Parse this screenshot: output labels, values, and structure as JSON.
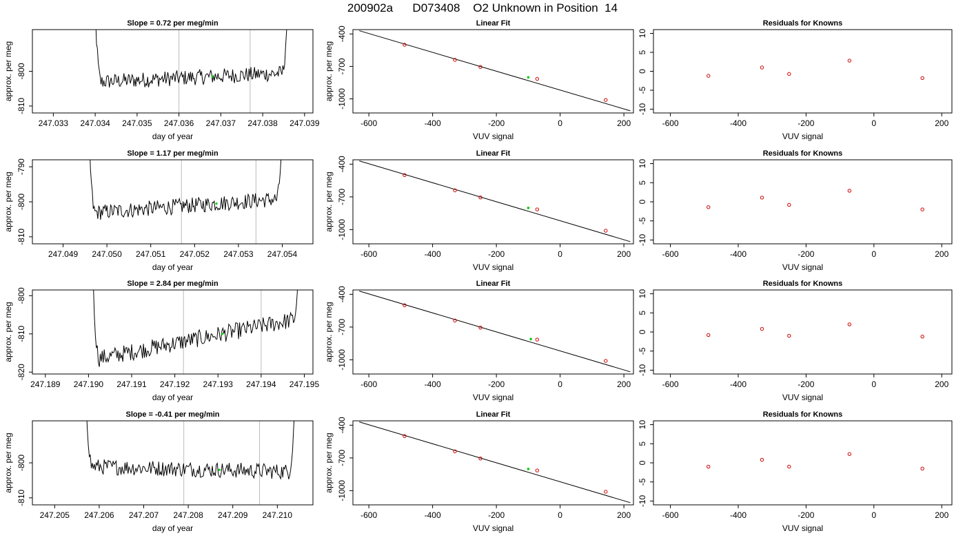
{
  "figure_title": "200902a      D073408    O2 Unknown in Position  14",
  "chart_data": [
    {
      "type": "line",
      "title": "Slope =  0.72  per meg/min",
      "xlabel": "day of year",
      "ylabel": "approx. per meg",
      "xlim": [
        247.0325,
        247.0392
      ],
      "ylim": [
        -812,
        -788
      ],
      "xticks": [
        247.033,
        247.034,
        247.035,
        247.036,
        247.037,
        247.038,
        247.039
      ],
      "xtick_labels": [
        "247.033",
        "247.034",
        "247.035",
        "247.036",
        "247.037",
        "247.038",
        "247.039"
      ],
      "yticks": [
        -800,
        -810
      ],
      "ytick_labels": [
        "-800",
        "-810"
      ],
      "vlines": [
        247.036,
        247.0377
      ],
      "marker": {
        "x": 247.0368,
        "y": -801.5
      },
      "x_start": 247.0339,
      "x_end": 247.0387
    },
    {
      "type": "line",
      "title": "Linear Fit",
      "xlabel": "VUV signal",
      "ylabel": "approx. per meg",
      "xlim": [
        -650,
        230
      ],
      "ylim": [
        -1130,
        -360
      ],
      "xticks": [
        -600,
        -400,
        -200,
        0,
        200
      ],
      "xtick_labels": [
        "-600",
        "-400",
        "-200",
        "0",
        "200"
      ],
      "yticks": [
        -400,
        -700,
        -1000
      ],
      "ytick_labels": [
        "-400",
        "-700",
        "-1000"
      ],
      "knowns": {
        "x": [
          -488,
          -330,
          -250,
          -72,
          143
        ],
        "y": [
          -500,
          -640,
          -705,
          -815,
          -1010
        ]
      },
      "unknown": {
        "x": -100,
        "y": -801
      },
      "fit_line": {
        "x": [
          -630,
          220
        ],
        "y": [
          -370,
          -1110
        ]
      }
    },
    {
      "type": "scatter",
      "title": "Residuals for Knowns",
      "xlabel": "VUV signal",
      "ylabel": "",
      "xlim": [
        -650,
        230
      ],
      "ylim": [
        -11,
        11
      ],
      "xticks": [
        -600,
        -400,
        -200,
        0,
        200
      ],
      "xtick_labels": [
        "-600",
        "-400",
        "-200",
        "0",
        "200"
      ],
      "yticks": [
        10,
        5,
        0,
        -5,
        -10
      ],
      "ytick_labels": [
        "10",
        "5",
        "0",
        "-5",
        "-10"
      ],
      "x": [
        -488,
        -330,
        -250,
        -72,
        143
      ],
      "y": [
        -1.2,
        1.0,
        -0.7,
        2.8,
        -1.8
      ]
    },
    {
      "type": "line",
      "title": "Slope =  1.17  per meg/min",
      "xlabel": "day of year",
      "ylabel": "approx. per meg",
      "xlim": [
        247.0483,
        247.0547
      ],
      "ylim": [
        -812,
        -788
      ],
      "xticks": [
        247.049,
        247.05,
        247.051,
        247.052,
        247.053,
        247.054
      ],
      "xtick_labels": [
        "247.049",
        "247.050",
        "247.051",
        "247.052",
        "247.053",
        "247.054"
      ],
      "yticks": [
        -790,
        -800,
        -810
      ],
      "ytick_labels": [
        "-790",
        "-800",
        "-810"
      ],
      "vlines": [
        247.0517,
        247.0534
      ],
      "marker": {
        "x": 247.0525,
        "y": -800.5
      },
      "x_start": 247.0495,
      "x_end": 247.0541
    },
    {
      "type": "line",
      "title": "Linear Fit",
      "xlabel": "VUV signal",
      "ylabel": "approx. per meg",
      "xlim": [
        -650,
        230
      ],
      "ylim": [
        -1130,
        -360
      ],
      "xticks": [
        -600,
        -400,
        -200,
        0,
        200
      ],
      "xtick_labels": [
        "-600",
        "-400",
        "-200",
        "0",
        "200"
      ],
      "yticks": [
        -400,
        -700,
        -1000
      ],
      "ytick_labels": [
        "-400",
        "-700",
        "-1000"
      ],
      "knowns": {
        "x": [
          -488,
          -330,
          -250,
          -72,
          143
        ],
        "y": [
          -500,
          -640,
          -705,
          -815,
          -1010
        ]
      },
      "unknown": {
        "x": -100,
        "y": -801
      },
      "fit_line": {
        "x": [
          -630,
          220
        ],
        "y": [
          -370,
          -1110
        ]
      }
    },
    {
      "type": "scatter",
      "title": "Residuals for Knowns",
      "xlabel": "VUV signal",
      "ylabel": "",
      "xlim": [
        -650,
        230
      ],
      "ylim": [
        -11,
        11
      ],
      "xticks": [
        -600,
        -400,
        -200,
        0,
        200
      ],
      "xtick_labels": [
        "-600",
        "-400",
        "-200",
        "0",
        "200"
      ],
      "yticks": [
        10,
        5,
        0,
        -5,
        -10
      ],
      "ytick_labels": [
        "10",
        "5",
        "0",
        "-5",
        "-10"
      ],
      "x": [
        -488,
        -330,
        -250,
        -72,
        143
      ],
      "y": [
        -1.4,
        1.1,
        -0.8,
        2.9,
        -2.0
      ]
    },
    {
      "type": "line",
      "title": "Slope =  2.84  per meg/min",
      "xlabel": "day of year",
      "ylabel": "approx. per meg",
      "xlim": [
        247.1887,
        247.1952
      ],
      "ylim": [
        -820.5,
        -798.5
      ],
      "xticks": [
        247.189,
        247.19,
        247.191,
        247.192,
        247.193,
        247.194,
        247.195
      ],
      "xtick_labels": [
        "247.189",
        "247.190",
        "247.191",
        "247.192",
        "247.193",
        "247.194",
        "247.195"
      ],
      "yticks": [
        -800,
        -810,
        -820
      ],
      "ytick_labels": [
        "-800",
        "-810",
        "-820"
      ],
      "vlines": [
        247.1922,
        247.194
      ],
      "marker": {
        "x": 247.1931,
        "y": -810
      },
      "x_start": 247.19,
      "x_end": 247.195
    },
    {
      "type": "line",
      "title": "Linear Fit",
      "xlabel": "VUV signal",
      "ylabel": "approx. per meg",
      "xlim": [
        -650,
        230
      ],
      "ylim": [
        -1130,
        -360
      ],
      "xticks": [
        -600,
        -400,
        -200,
        0,
        200
      ],
      "xtick_labels": [
        "-600",
        "-400",
        "-200",
        "0",
        "200"
      ],
      "yticks": [
        -400,
        -700,
        -1000
      ],
      "ytick_labels": [
        "-400",
        "-700",
        "-1000"
      ],
      "knowns": {
        "x": [
          -488,
          -330,
          -250,
          -72,
          143
        ],
        "y": [
          -500,
          -640,
          -705,
          -815,
          -1010
        ]
      },
      "unknown": {
        "x": -92,
        "y": -810
      },
      "fit_line": {
        "x": [
          -630,
          220
        ],
        "y": [
          -370,
          -1110
        ]
      }
    },
    {
      "type": "scatter",
      "title": "Residuals for Knowns",
      "xlabel": "VUV signal",
      "ylabel": "",
      "xlim": [
        -650,
        230
      ],
      "ylim": [
        -11,
        11
      ],
      "xticks": [
        -600,
        -400,
        -200,
        0,
        200
      ],
      "xtick_labels": [
        "-600",
        "-400",
        "-200",
        "0",
        "200"
      ],
      "yticks": [
        10,
        5,
        0,
        -5,
        -10
      ],
      "ytick_labels": [
        "10",
        "5",
        "0",
        "-5",
        "-10"
      ],
      "x": [
        -488,
        -330,
        -250,
        -72,
        143
      ],
      "y": [
        -0.8,
        0.8,
        -1.0,
        2.0,
        -1.2
      ]
    },
    {
      "type": "line",
      "title": "Slope =  -0.41  per meg/min",
      "xlabel": "day of year",
      "ylabel": "approx. per meg",
      "xlim": [
        247.2045,
        247.2108
      ],
      "ylim": [
        -812,
        -788
      ],
      "xticks": [
        247.205,
        247.206,
        247.207,
        247.208,
        247.209,
        247.21
      ],
      "xtick_labels": [
        "247.205",
        "247.206",
        "247.207",
        "247.208",
        "247.209",
        "247.210"
      ],
      "yticks": [
        -800,
        -810
      ],
      "ytick_labels": [
        "-800",
        "-810"
      ],
      "vlines": [
        247.2079,
        247.2096
      ],
      "marker": {
        "x": 247.2087,
        "y": -802
      },
      "x_start": 247.2056,
      "x_end": 247.2105
    },
    {
      "type": "line",
      "title": "Linear Fit",
      "xlabel": "VUV signal",
      "ylabel": "approx. per meg",
      "xlim": [
        -650,
        230
      ],
      "ylim": [
        -1130,
        -360
      ],
      "xticks": [
        -600,
        -400,
        -200,
        0,
        200
      ],
      "xtick_labels": [
        "-600",
        "-400",
        "-200",
        "0",
        "200"
      ],
      "yticks": [
        -400,
        -700,
        -1000
      ],
      "ytick_labels": [
        "-400",
        "-700",
        "-1000"
      ],
      "knowns": {
        "x": [
          -488,
          -330,
          -250,
          -72,
          143
        ],
        "y": [
          -500,
          -640,
          -705,
          -815,
          -1010
        ]
      },
      "unknown": {
        "x": -100,
        "y": -801
      },
      "fit_line": {
        "x": [
          -630,
          220
        ],
        "y": [
          -370,
          -1110
        ]
      }
    },
    {
      "type": "scatter",
      "title": "Residuals for Knowns",
      "xlabel": "VUV signal",
      "ylabel": "",
      "xlim": [
        -650,
        230
      ],
      "ylim": [
        -11,
        11
      ],
      "xticks": [
        -600,
        -400,
        -200,
        0,
        200
      ],
      "xtick_labels": [
        "-600",
        "-400",
        "-200",
        "0",
        "200"
      ],
      "yticks": [
        10,
        5,
        0,
        -5,
        -10
      ],
      "ytick_labels": [
        "10",
        "5",
        "0",
        "-5",
        "-10"
      ],
      "x": [
        -488,
        -330,
        -250,
        -72,
        143
      ],
      "y": [
        -1.0,
        0.8,
        -1.0,
        2.3,
        -1.5
      ]
    }
  ],
  "colors": {
    "line": "#000000",
    "known_points": "#cc0000",
    "unknown_point": "#00cc00",
    "vertical_lines": "#bbbbbb",
    "axes": "#000000"
  }
}
